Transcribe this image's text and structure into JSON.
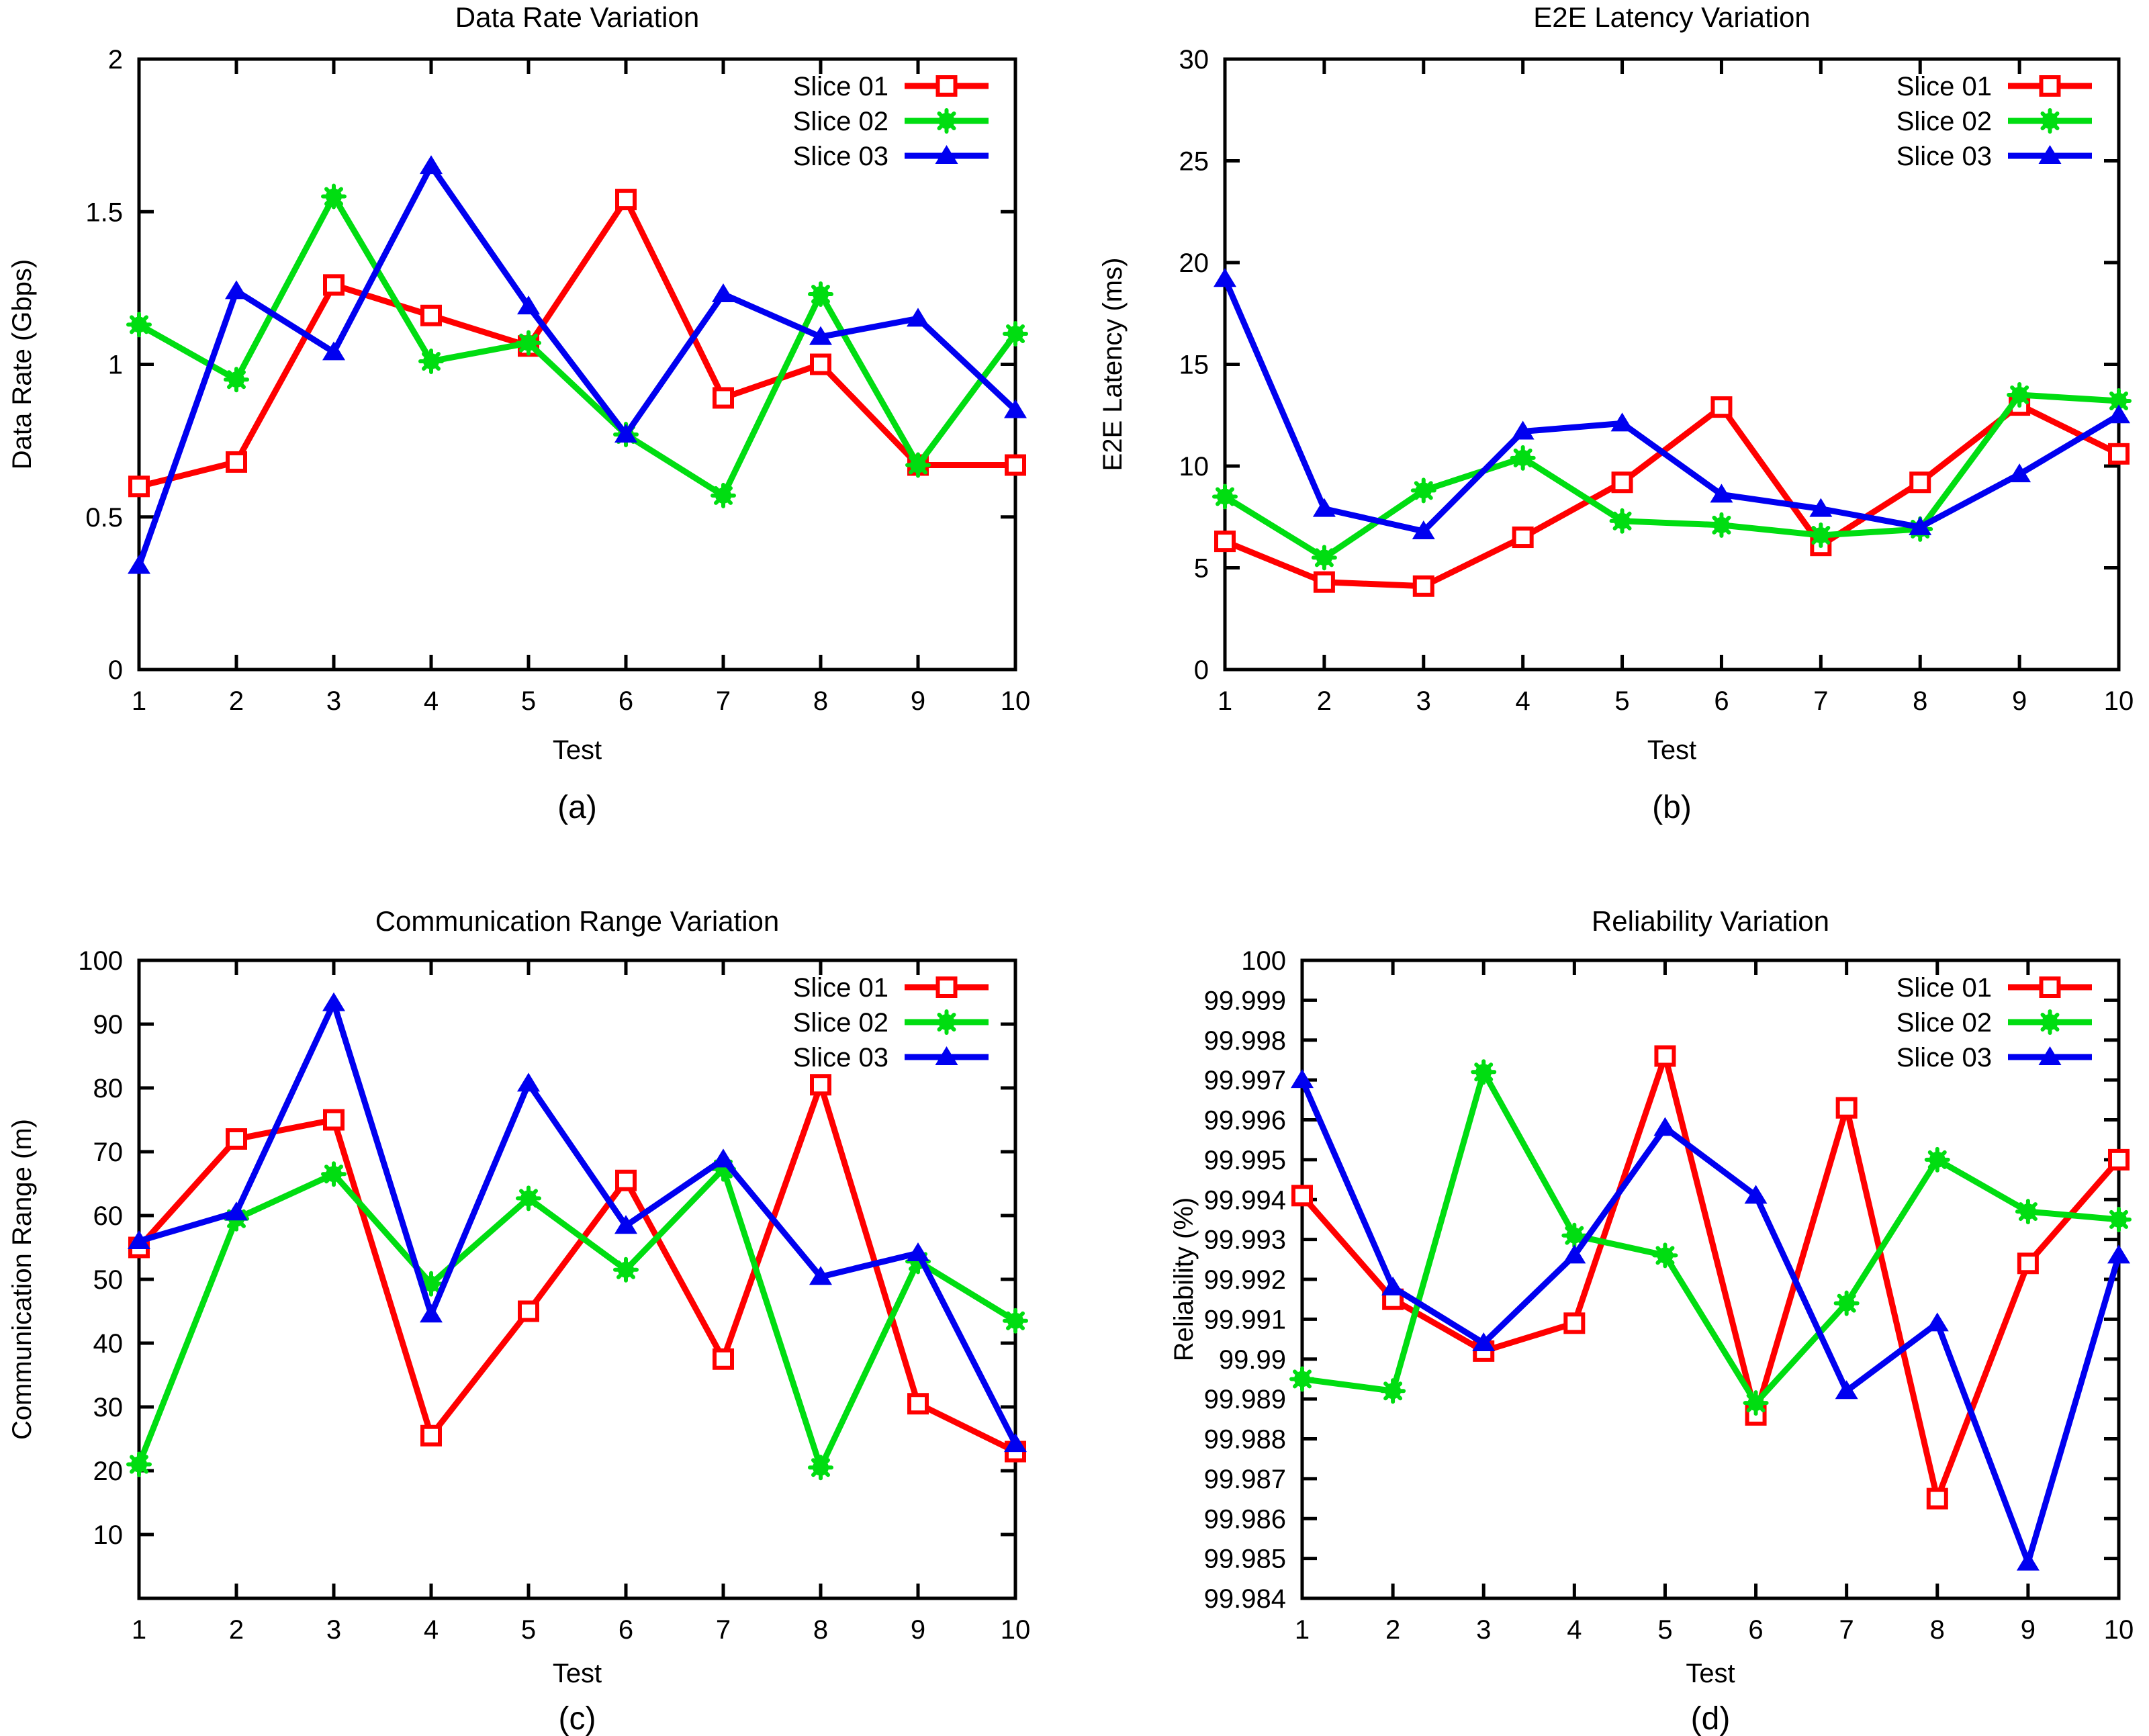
{
  "figure": {
    "background": "#ffffff",
    "axis_color": "#000000",
    "text_color": "#000000",
    "legend_labels": [
      "Slice 01",
      "Slice 02",
      "Slice 03"
    ],
    "series_colors": {
      "slice01": "#ff0000",
      "slice02": "#00dd11",
      "slice03": "#0000f0"
    }
  },
  "chart_data": [
    {
      "id": "a",
      "type": "line",
      "title": "Data Rate Variation",
      "xlabel": "Test",
      "ylabel": "Data Rate (Gbps)",
      "sublabel": "(a)",
      "legend_position": "top-right",
      "grid": false,
      "categories": [
        1,
        2,
        3,
        4,
        5,
        6,
        7,
        8,
        9,
        10
      ],
      "xtick_labels": [
        "1",
        "2",
        "3",
        "4",
        "5",
        "6",
        "7",
        "8",
        "9",
        "10"
      ],
      "xlim": [
        1,
        10
      ],
      "ylim": [
        0,
        2
      ],
      "yticks": [
        0,
        0.5,
        1,
        1.5,
        2
      ],
      "ytick_labels": [
        "0",
        "0.5",
        "1",
        "1.5",
        "2"
      ],
      "series": [
        {
          "name": "Slice 01",
          "color": "#ff0000",
          "marker": "open-square",
          "values": [
            0.6,
            0.68,
            1.26,
            1.16,
            1.06,
            1.54,
            0.89,
            1.0,
            0.67,
            0.67
          ]
        },
        {
          "name": "Slice 02",
          "color": "#00dd11",
          "marker": "asterisk-dot",
          "values": [
            1.13,
            0.95,
            1.55,
            1.01,
            1.07,
            0.77,
            0.57,
            1.23,
            0.67,
            1.1
          ]
        },
        {
          "name": "Slice 03",
          "color": "#0000f0",
          "marker": "filled-triangle",
          "values": [
            0.34,
            1.24,
            1.04,
            1.65,
            1.19,
            0.77,
            1.23,
            1.09,
            1.15,
            0.85
          ]
        }
      ]
    },
    {
      "id": "b",
      "type": "line",
      "title": "E2E Latency Variation",
      "xlabel": "Test",
      "ylabel": "E2E Latency (ms)",
      "sublabel": "(b)",
      "legend_position": "top-right",
      "grid": false,
      "categories": [
        1,
        2,
        3,
        4,
        5,
        6,
        7,
        8,
        9,
        10
      ],
      "xtick_labels": [
        "1",
        "2",
        "3",
        "4",
        "5",
        "6",
        "7",
        "8",
        "9",
        "10"
      ],
      "xlim": [
        1,
        10
      ],
      "ylim": [
        0,
        30
      ],
      "yticks": [
        0,
        5,
        10,
        15,
        20,
        25,
        30
      ],
      "ytick_labels": [
        "0",
        "5",
        "10",
        "15",
        "20",
        "25",
        "30"
      ],
      "series": [
        {
          "name": "Slice 01",
          "color": "#ff0000",
          "marker": "open-square",
          "values": [
            6.3,
            4.3,
            4.1,
            6.5,
            9.2,
            12.9,
            6.1,
            9.2,
            13.0,
            10.6
          ]
        },
        {
          "name": "Slice 02",
          "color": "#00dd11",
          "marker": "asterisk-dot",
          "values": [
            8.5,
            5.5,
            8.8,
            10.4,
            7.3,
            7.1,
            6.6,
            6.9,
            13.5,
            13.2
          ]
        },
        {
          "name": "Slice 03",
          "color": "#0000f0",
          "marker": "filled-triangle",
          "values": [
            19.2,
            7.9,
            6.8,
            11.7,
            12.1,
            8.6,
            7.9,
            7.0,
            9.6,
            12.5
          ]
        }
      ]
    },
    {
      "id": "c",
      "type": "line",
      "title": "Communication Range Variation",
      "xlabel": "Test",
      "ylabel": "Communication Range (m)",
      "sublabel": "(c)",
      "legend_position": "top-right",
      "grid": false,
      "categories": [
        1,
        2,
        3,
        4,
        5,
        6,
        7,
        8,
        9,
        10
      ],
      "xtick_labels": [
        "1",
        "2",
        "3",
        "4",
        "5",
        "6",
        "7",
        "8",
        "9",
        "10"
      ],
      "xlim": [
        1,
        10
      ],
      "ylim": [
        0,
        100
      ],
      "yticks": [
        10,
        20,
        30,
        40,
        50,
        60,
        70,
        80,
        90,
        100
      ],
      "ytick_labels": [
        "10",
        "20",
        "30",
        "40",
        "50",
        "60",
        "70",
        "80",
        "90",
        "100"
      ],
      "series": [
        {
          "name": "Slice 01",
          "color": "#ff0000",
          "marker": "open-square",
          "values": [
            55.0,
            72.0,
            75.0,
            25.5,
            45.0,
            65.5,
            37.5,
            80.5,
            30.5,
            23.0
          ]
        },
        {
          "name": "Slice 02",
          "color": "#00dd11",
          "marker": "asterisk-dot",
          "values": [
            21.0,
            59.5,
            66.5,
            49.3,
            62.7,
            51.5,
            67.3,
            20.5,
            52.8,
            43.5
          ]
        },
        {
          "name": "Slice 03",
          "color": "#0000f0",
          "marker": "filled-triangle",
          "values": [
            56.0,
            60.5,
            93.3,
            44.5,
            80.7,
            58.4,
            68.8,
            50.4,
            54.1,
            24.2
          ]
        }
      ]
    },
    {
      "id": "d",
      "type": "line",
      "title": "Reliability Variation",
      "xlabel": "Test",
      "ylabel": "Reliability (%)",
      "sublabel": "(d)",
      "legend_position": "top-right",
      "grid": false,
      "categories": [
        1,
        2,
        3,
        4,
        5,
        6,
        7,
        8,
        9,
        10
      ],
      "xtick_labels": [
        "1",
        "2",
        "3",
        "4",
        "5",
        "6",
        "7",
        "8",
        "9",
        "10"
      ],
      "xlim": [
        1,
        10
      ],
      "ylim": [
        99.984,
        100
      ],
      "yticks": [
        99.984,
        99.985,
        99.986,
        99.987,
        99.988,
        99.989,
        99.99,
        99.991,
        99.992,
        99.993,
        99.994,
        99.995,
        99.996,
        99.997,
        99.998,
        99.999,
        100
      ],
      "ytick_labels": [
        "99.984",
        "99.985",
        "99.986",
        "99.987",
        "99.988",
        "99.989",
        "99.99",
        "99.991",
        "99.992",
        "99.993",
        "99.994",
        "99.995",
        "99.996",
        "99.997",
        "99.998",
        "99.999",
        "100"
      ],
      "series": [
        {
          "name": "Slice 01",
          "color": "#ff0000",
          "marker": "open-square",
          "values": [
            99.9941,
            99.9915,
            99.9902,
            99.9909,
            99.9976,
            99.9886,
            99.9963,
            99.9865,
            99.9924,
            99.995
          ]
        },
        {
          "name": "Slice 02",
          "color": "#00dd11",
          "marker": "asterisk-dot",
          "values": [
            99.9895,
            99.9892,
            99.9972,
            99.9931,
            99.9926,
            99.9889,
            99.9914,
            99.995,
            99.9937,
            99.9935
          ]
        },
        {
          "name": "Slice 03",
          "color": "#0000f0",
          "marker": "filled-triangle",
          "values": [
            99.997,
            99.9918,
            99.9904,
            99.9926,
            99.9958,
            99.9941,
            99.9892,
            99.9909,
            99.9849,
            99.9926
          ]
        }
      ]
    }
  ]
}
